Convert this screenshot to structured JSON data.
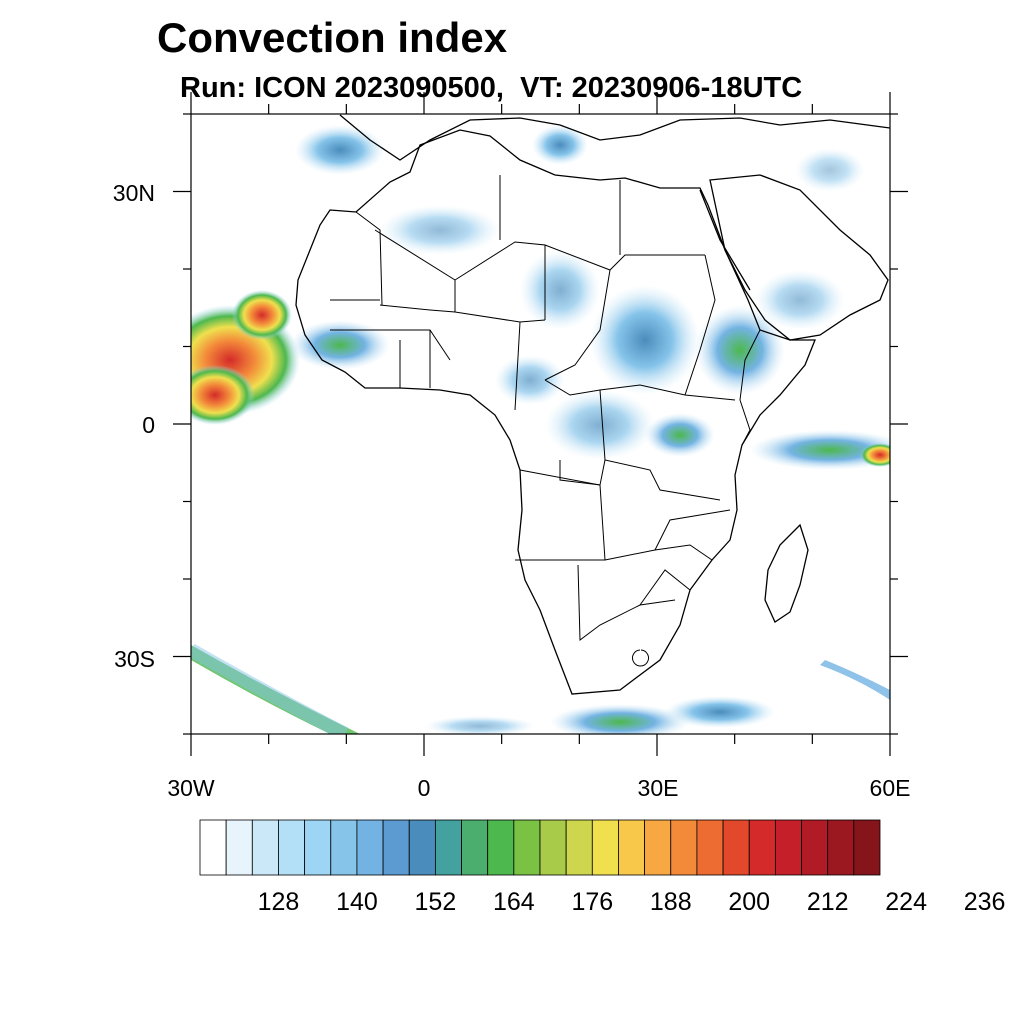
{
  "title": "Convection index",
  "subtitle": "Run: ICON 2023090500,  VT: 20230906-18UTC",
  "map": {
    "lon_range": [
      -30,
      60
    ],
    "lat_range": [
      -40,
      40
    ],
    "lat_labels": [
      "30N",
      "0",
      "30S"
    ],
    "lon_labels": [
      "30W",
      "0",
      "30E",
      "60E"
    ]
  },
  "colorbar": {
    "labels": [
      "128",
      "140",
      "152",
      "164",
      "176",
      "188",
      "200",
      "212",
      "224",
      "236"
    ],
    "colors": [
      "#ffffff",
      "#e8f4fc",
      "#cbe8f8",
      "#b3e0f6",
      "#9dd6f4",
      "#86c4ea",
      "#73b3e3",
      "#5b9bd2",
      "#4a8cbc",
      "#43a2a0",
      "#4cae6e",
      "#4db84e",
      "#7ac244",
      "#a8cc4a",
      "#cdd64d",
      "#f0e04e",
      "#f8c84a",
      "#f7a842",
      "#f38a3a",
      "#ec6c32",
      "#e2492c",
      "#d42a2a",
      "#c51f2a",
      "#b01b25",
      "#9b1820",
      "#86151b"
    ]
  },
  "icons": {
    "map": "africa-convection-map"
  }
}
